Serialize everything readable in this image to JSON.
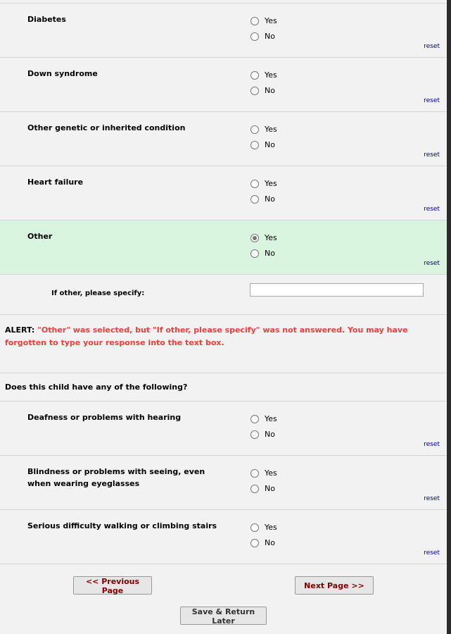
{
  "questions_top": [
    {
      "label": "Diabetes",
      "selected": null
    },
    {
      "label": "Down syndrome",
      "selected": null
    },
    {
      "label": "Other genetic or inherited condition",
      "selected": null
    },
    {
      "label": "Heart failure",
      "selected": null
    },
    {
      "label": "Other",
      "selected": "Yes"
    }
  ],
  "options": {
    "yes": "Yes",
    "no": "No",
    "reset": "reset"
  },
  "specify": {
    "label": "If other, please specify:",
    "value": ""
  },
  "alert": {
    "prefix": "ALERT:",
    "message": "\"Other\" was selected, but \"If other, please specify\" was not answered. You may have forgotten to type your response into the text box."
  },
  "section_header": "Does this child have any of the following?",
  "questions_bottom": [
    {
      "label": "Deafness or problems with hearing",
      "selected": null
    },
    {
      "label": "Blindness or problems with seeing, even when wearing eyeglasses",
      "selected": null
    },
    {
      "label": "Serious difficulty walking or climbing stairs",
      "selected": null
    }
  ],
  "buttons": {
    "previous": "<< Previous Page",
    "next": "Next Page >>",
    "save": "Save & Return Later"
  },
  "colors": {
    "highlight": "#daf5df",
    "alert": "#e8403a",
    "button_text": "#800000",
    "link": "#000080"
  }
}
